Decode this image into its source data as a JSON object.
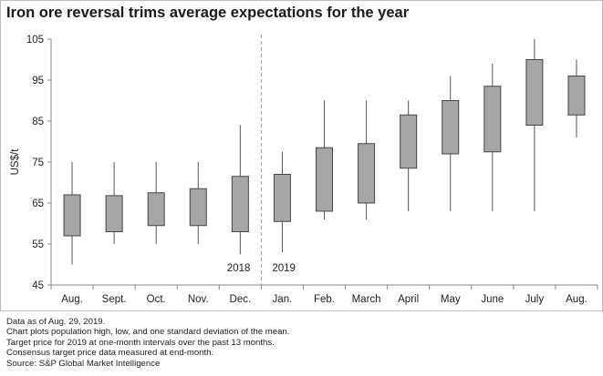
{
  "title": "Iron ore reversal trims average expectations for the year",
  "notes": [
    "Data as of Aug. 29, 2019.",
    "Chart plots population high, low, and one standard deviation of the mean.",
    "Target price for 2019 at one-month intervals over the past 13 months.",
    "Consensus target price data measured at end-month.",
    "Source: S&P Global Market Intelligence"
  ],
  "colors": {
    "box_fill": "#a6a6a6",
    "box_stroke": "#444444",
    "whisker": "#555555",
    "divider": "#999999"
  },
  "chart_data": {
    "type": "boxplot",
    "title": "Iron ore reversal trims average expectations for the year",
    "ylabel": "US$/t",
    "xlabel": "",
    "ylim": [
      45,
      105
    ],
    "yticks": [
      45,
      55,
      65,
      75,
      85,
      95,
      105
    ],
    "grid": false,
    "categories": [
      "Aug.",
      "Sept.",
      "Oct.",
      "Nov.",
      "Dec.",
      "Jan.",
      "Feb.",
      "March",
      "April",
      "May",
      "June",
      "July",
      "Aug."
    ],
    "high": [
      75,
      75,
      75,
      75,
      84,
      77.5,
      90,
      90,
      90,
      96,
      99,
      105,
      100
    ],
    "box_top": [
      67,
      66.8,
      67.5,
      68.5,
      71.5,
      72,
      78.5,
      79.5,
      86.5,
      90,
      93.5,
      100,
      96
    ],
    "box_bottom": [
      57,
      58,
      59.5,
      59.5,
      58,
      60.5,
      63,
      65,
      73.5,
      77,
      77.5,
      84,
      86.5
    ],
    "low": [
      50,
      55,
      55,
      55,
      52.5,
      53,
      61,
      61,
      63,
      63,
      63,
      63,
      81
    ],
    "year_labels": [
      "2018",
      "2019"
    ],
    "divider_between": [
      4,
      5
    ]
  }
}
